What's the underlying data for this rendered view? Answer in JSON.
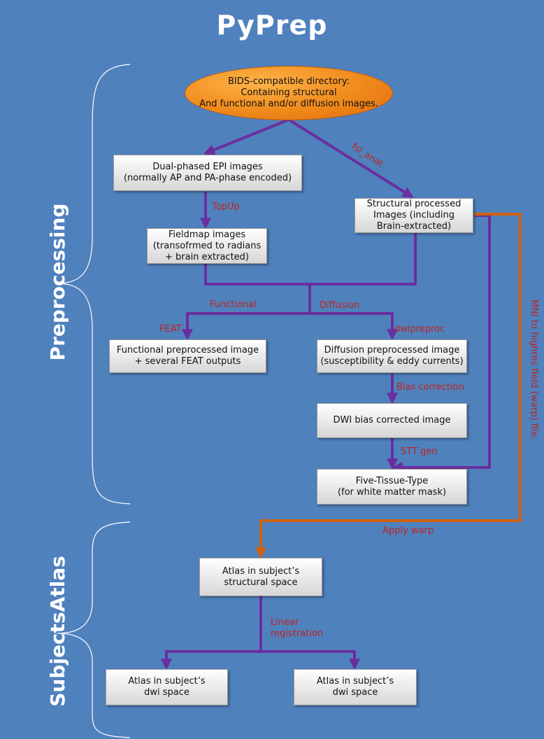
{
  "title": "PyPrep",
  "sections": {
    "preprocessing": "Preprocessing",
    "subjects_atlas": "SubjectsAtlas"
  },
  "nodes": {
    "bids": [
      "BIDS-compatible directory:",
      "Containing structural",
      "And functional and/or diffusion images."
    ],
    "dual_epi": [
      "Dual-phased EPI images",
      "(normally AP and PA-phase encoded)"
    ],
    "structural": [
      "Structural processed",
      "Images (including",
      "Brain-extracted)"
    ],
    "fieldmap": [
      "Fieldmap images",
      "(transofrmed to radians",
      "+ brain extracted)"
    ],
    "functional_pre": [
      "Functional preprocessed image",
      "+ several FEAT outputs"
    ],
    "diffusion_pre": [
      "Diffusion preprocessed image",
      "(susceptibility & eddy currents)"
    ],
    "dwi_bias": [
      "DWI bias corrected image"
    ],
    "five_tt": [
      "Five-Tissue-Type",
      "(for white matter mask)"
    ],
    "atlas_struct": [
      "Atlas in subject’s",
      "structural space"
    ],
    "atlas_dwi_1": [
      "Atlas in subject’s",
      "dwi space"
    ],
    "atlas_dwi_2": [
      "Atlas in subject’s",
      "dwi space"
    ]
  },
  "edge_labels": {
    "fsl_anat": "fsl_anat",
    "topup": "TopUp",
    "functional": "Functional",
    "diffusion": "Diffusion",
    "feat": "FEAT",
    "dwipreproc": "dwipreproc",
    "bias_correction": "Bias correction",
    "five_tt_gen": "5TT gen",
    "mni_warp": "MNI to highres field (warp) file.",
    "apply_warp": "Apply warp",
    "linear_registration": [
      "Linear",
      "registration"
    ]
  },
  "colors": {
    "background": "#4f81bd",
    "purple_edge": "#6a2ea0",
    "orange_edge": "#d1600f",
    "edge_label": "#c0231e"
  }
}
